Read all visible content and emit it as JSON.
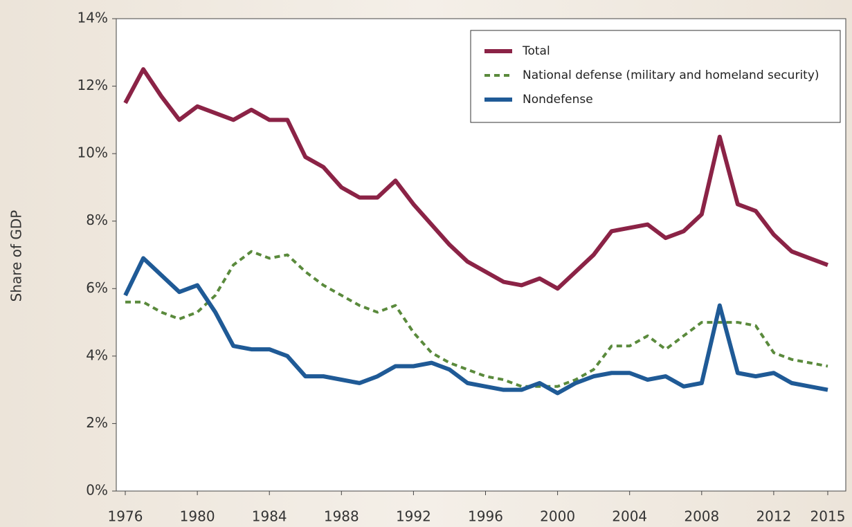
{
  "chart_data": {
    "type": "line",
    "y_label": "Share of GDP",
    "x": [
      1976,
      1977,
      1978,
      1979,
      1980,
      1981,
      1982,
      1983,
      1984,
      1985,
      1986,
      1987,
      1988,
      1989,
      1990,
      1991,
      1992,
      1993,
      1994,
      1995,
      1996,
      1997,
      1998,
      1999,
      2000,
      2001,
      2002,
      2003,
      2004,
      2005,
      2006,
      2007,
      2008,
      2009,
      2010,
      2011,
      2012,
      2013,
      2014,
      2015
    ],
    "series": [
      {
        "name": "Total",
        "color": "#8b2346",
        "dash": false,
        "values": [
          11.5,
          12.5,
          11.7,
          11.0,
          11.4,
          11.2,
          11.0,
          11.3,
          11.0,
          11.0,
          9.9,
          9.6,
          9.0,
          8.7,
          8.7,
          9.2,
          8.5,
          7.9,
          7.3,
          6.8,
          6.5,
          6.2,
          6.1,
          6.3,
          6.0,
          6.5,
          7.0,
          7.7,
          7.8,
          7.9,
          7.5,
          7.7,
          8.2,
          10.5,
          8.5,
          8.3,
          7.6,
          7.1,
          6.9,
          6.7
        ]
      },
      {
        "name": "National defense (military and homeland security)",
        "color": "#5a8a3c",
        "dash": true,
        "values": [
          5.6,
          5.6,
          5.3,
          5.1,
          5.3,
          5.8,
          6.7,
          7.1,
          6.9,
          7.0,
          6.5,
          6.1,
          5.8,
          5.5,
          5.3,
          5.5,
          4.7,
          4.1,
          3.8,
          3.6,
          3.4,
          3.3,
          3.1,
          3.1,
          3.1,
          3.3,
          3.6,
          4.3,
          4.3,
          4.6,
          4.2,
          4.6,
          5.0,
          5.0,
          5.0,
          4.9,
          4.1,
          3.9,
          3.8,
          3.7
        ]
      },
      {
        "name": "Nondefense",
        "color": "#1f5a96",
        "dash": false,
        "values": [
          5.8,
          6.9,
          6.4,
          5.9,
          6.1,
          5.3,
          4.3,
          4.2,
          4.2,
          4.0,
          3.4,
          3.4,
          3.3,
          3.2,
          3.4,
          3.7,
          3.7,
          3.8,
          3.6,
          3.2,
          3.1,
          3.0,
          3.0,
          3.2,
          2.9,
          3.2,
          3.4,
          3.5,
          3.5,
          3.3,
          3.4,
          3.1,
          3.2,
          5.5,
          3.5,
          3.4,
          3.5,
          3.2,
          3.1,
          3.0
        ]
      }
    ],
    "xlim": [
      1975.5,
      2016
    ],
    "xticks": [
      1976,
      1980,
      1984,
      1988,
      1992,
      1996,
      2000,
      2004,
      2008,
      2012,
      2015
    ],
    "ylim": [
      0,
      14
    ],
    "yticks": [
      {
        "value": 0,
        "label": "0%"
      },
      {
        "value": 2,
        "label": "2%"
      },
      {
        "value": 4,
        "label": "4%"
      },
      {
        "value": 6,
        "label": "6%"
      },
      {
        "value": 8,
        "label": "8%"
      },
      {
        "value": 10,
        "label": "10%"
      },
      {
        "value": 12,
        "label": "12%"
      },
      {
        "value": 14,
        "label": "14%"
      }
    ],
    "legend": "top-right"
  }
}
